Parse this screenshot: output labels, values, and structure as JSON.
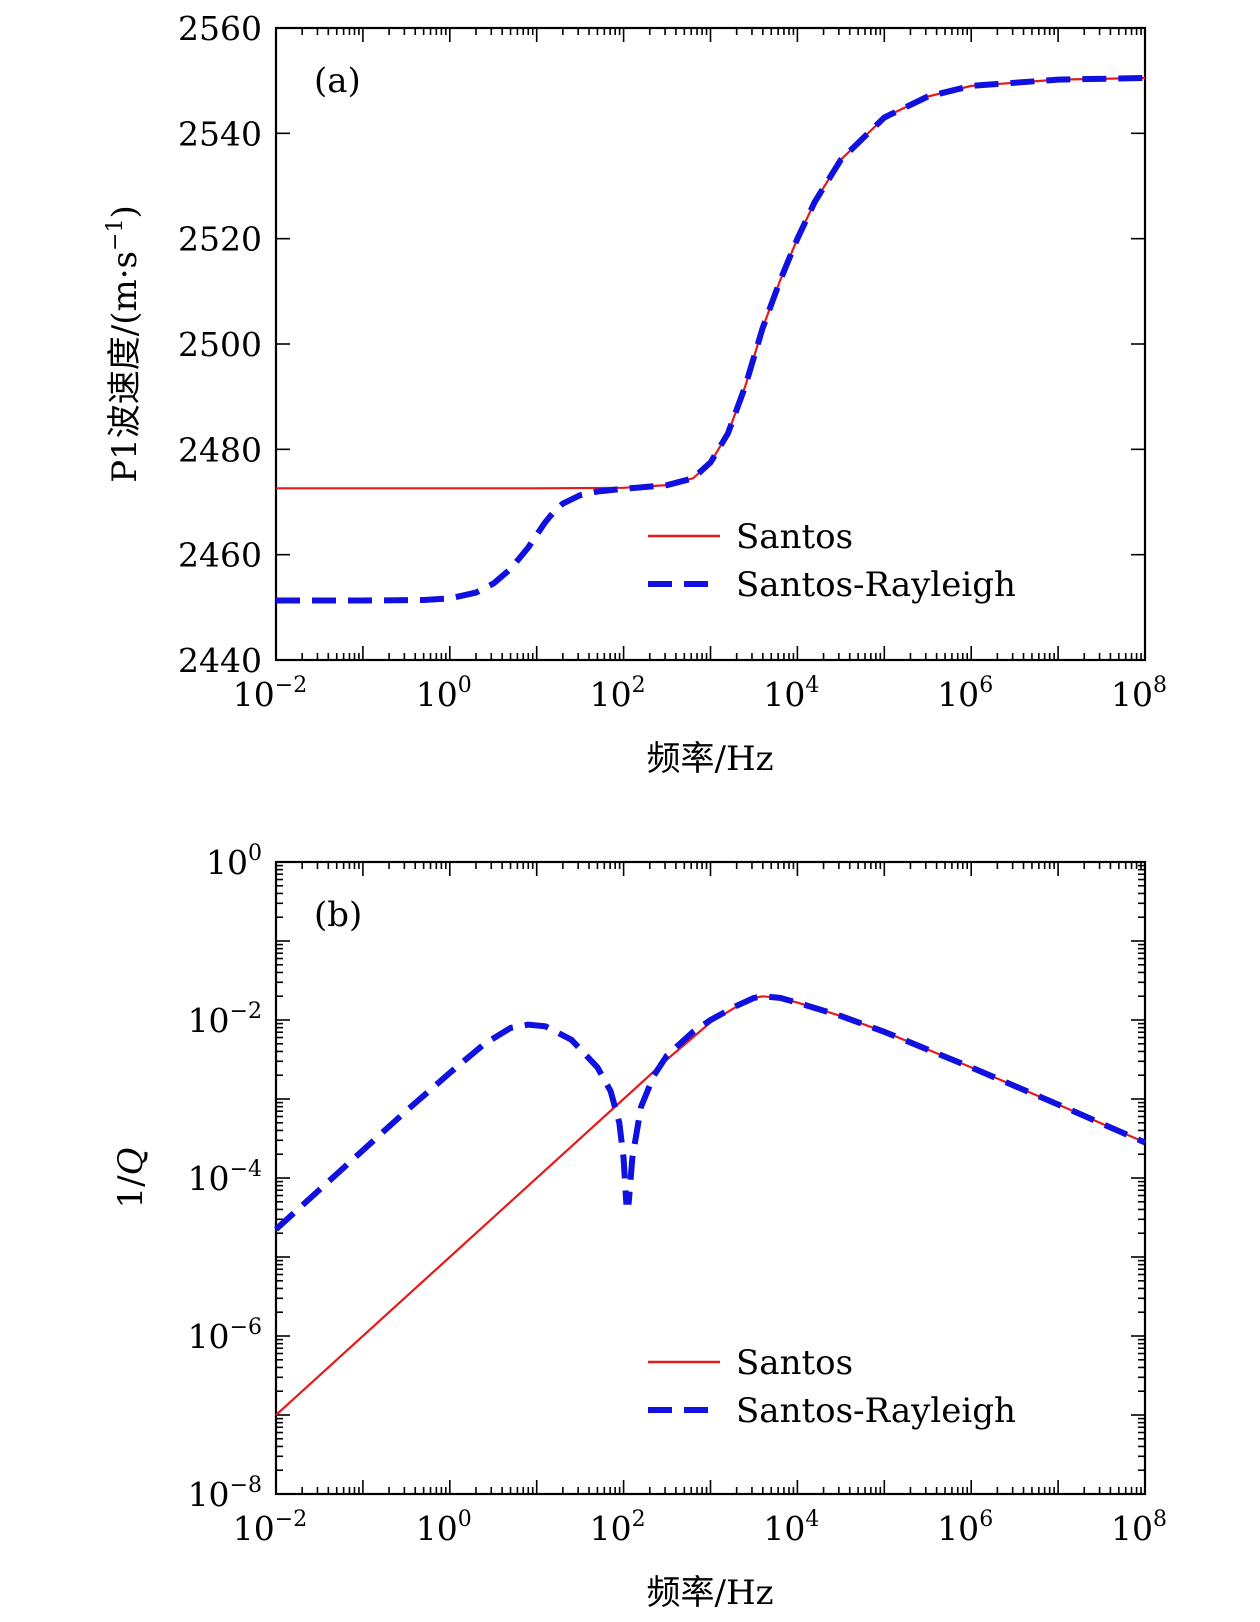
{
  "chart_data": [
    {
      "type": "line",
      "panel_label": "(a)",
      "xlabel": "频率/Hz",
      "ylabel": "P1波速度/(m·s",
      "ylabel_exp": "−1",
      "ylabel_end": ")",
      "xscale": "log",
      "xlim_exp": [
        -2,
        8
      ],
      "ylim": [
        2440,
        2560
      ],
      "xticks": [
        {
          "base": "10",
          "exp": "−2",
          "value_exp": -2
        },
        {
          "base": "10",
          "exp": "0",
          "value_exp": 0
        },
        {
          "base": "10",
          "exp": "2",
          "value_exp": 2
        },
        {
          "base": "10",
          "exp": "4",
          "value_exp": 4
        },
        {
          "base": "10",
          "exp": "6",
          "value_exp": 6
        },
        {
          "base": "10",
          "exp": "8",
          "value_exp": 8
        }
      ],
      "yticks": [
        "2440",
        "2460",
        "2480",
        "2500",
        "2520",
        "2540",
        "2560"
      ],
      "legend": {
        "position": "lower-right",
        "entries": [
          "Santos",
          "Santos-Rayleigh"
        ]
      },
      "series": [
        {
          "name": "Santos",
          "color": "#e41a1c",
          "style": "solid",
          "log10_x": [
            -2,
            0,
            1,
            2,
            2.5,
            2.8,
            3.0,
            3.2,
            3.4,
            3.6,
            3.8,
            4.0,
            4.2,
            4.5,
            5.0,
            5.5,
            6.0,
            7.0,
            8.0
          ],
          "y": [
            2472.6,
            2472.6,
            2472.6,
            2472.7,
            2473.2,
            2474.5,
            2477.5,
            2483,
            2492,
            2503,
            2512,
            2520,
            2527,
            2535,
            2543,
            2547,
            2549,
            2550.2,
            2550.5
          ]
        },
        {
          "name": "Santos-Rayleigh",
          "color": "#1010e0",
          "style": "dashed",
          "log10_x": [
            -2,
            -1,
            -0.3,
            0,
            0.3,
            0.5,
            0.7,
            0.9,
            1.0,
            1.1,
            1.2,
            1.3,
            1.5,
            1.7,
            2.0,
            2.5,
            2.8,
            3.0,
            3.2,
            3.4,
            3.6,
            3.8,
            4.0,
            4.2,
            4.5,
            5.0,
            5.5,
            6.0,
            7.0,
            8.0
          ],
          "y": [
            2451.3,
            2451.3,
            2451.4,
            2451.7,
            2452.8,
            2454.5,
            2457.3,
            2461.3,
            2463.8,
            2466.2,
            2468.2,
            2469.7,
            2471.3,
            2472.0,
            2472.5,
            2473.2,
            2474.5,
            2477.5,
            2483,
            2492,
            2503,
            2512,
            2520,
            2527,
            2535,
            2543,
            2547,
            2549,
            2550.2,
            2550.5
          ]
        }
      ]
    },
    {
      "type": "line",
      "panel_label": "(b)",
      "xlabel": "频率/Hz",
      "ylabel": "1/",
      "ylabel_italic": "Q",
      "xscale": "log",
      "yscale": "log",
      "xlim_exp": [
        -2,
        8
      ],
      "ylim_exp": [
        -8,
        0
      ],
      "xticks": [
        {
          "base": "10",
          "exp": "−2",
          "value_exp": -2
        },
        {
          "base": "10",
          "exp": "0",
          "value_exp": 0
        },
        {
          "base": "10",
          "exp": "2",
          "value_exp": 2
        },
        {
          "base": "10",
          "exp": "4",
          "value_exp": 4
        },
        {
          "base": "10",
          "exp": "6",
          "value_exp": 6
        },
        {
          "base": "10",
          "exp": "8",
          "value_exp": 8
        }
      ],
      "yticks": [
        {
          "base": "10",
          "exp": "−8",
          "value_exp": -8
        },
        {
          "base": "10",
          "exp": "−6",
          "value_exp": -6
        },
        {
          "base": "10",
          "exp": "−4",
          "value_exp": -4
        },
        {
          "base": "10",
          "exp": "−2",
          "value_exp": -2
        },
        {
          "base": "10",
          "exp": "0",
          "value_exp": 0
        }
      ],
      "legend": {
        "position": "lower-right",
        "entries": [
          "Santos",
          "Santos-Rayleigh"
        ]
      },
      "series": [
        {
          "name": "Santos",
          "color": "#e41a1c",
          "style": "solid",
          "log10_x": [
            -2,
            0,
            2,
            2.5,
            3.0,
            3.3,
            3.5,
            3.6,
            3.8,
            4.0,
            4.5,
            5.0,
            6.0,
            7.0,
            8.0
          ],
          "log10_y": [
            -7.0,
            -5.0,
            -3.0,
            -2.5,
            -2.03,
            -1.83,
            -1.72,
            -1.7,
            -1.72,
            -1.78,
            -1.95,
            -2.15,
            -2.6,
            -3.07,
            -3.55
          ]
        },
        {
          "name": "Santos-Rayleigh",
          "color": "#1010e0",
          "style": "dashed",
          "log10_x": [
            -2,
            -1.5,
            -1,
            -0.5,
            0,
            0.4,
            0.7,
            0.9,
            1.1,
            1.4,
            1.7,
            1.85,
            1.95,
            2.0,
            2.03,
            2.06,
            2.1,
            2.2,
            2.35,
            2.5,
            2.8,
            3.0,
            3.3,
            3.5,
            3.6,
            3.8,
            4.0,
            4.5,
            5.0,
            6.0,
            7.0,
            8.0
          ],
          "log10_y": [
            -4.65,
            -4.15,
            -3.65,
            -3.15,
            -2.67,
            -2.3,
            -2.1,
            -2.06,
            -2.08,
            -2.25,
            -2.6,
            -2.9,
            -3.3,
            -3.75,
            -4.3,
            -4.3,
            -3.75,
            -3.1,
            -2.7,
            -2.45,
            -2.15,
            -2.0,
            -1.82,
            -1.72,
            -1.7,
            -1.72,
            -1.78,
            -1.95,
            -2.15,
            -2.6,
            -3.07,
            -3.55
          ]
        }
      ]
    }
  ]
}
